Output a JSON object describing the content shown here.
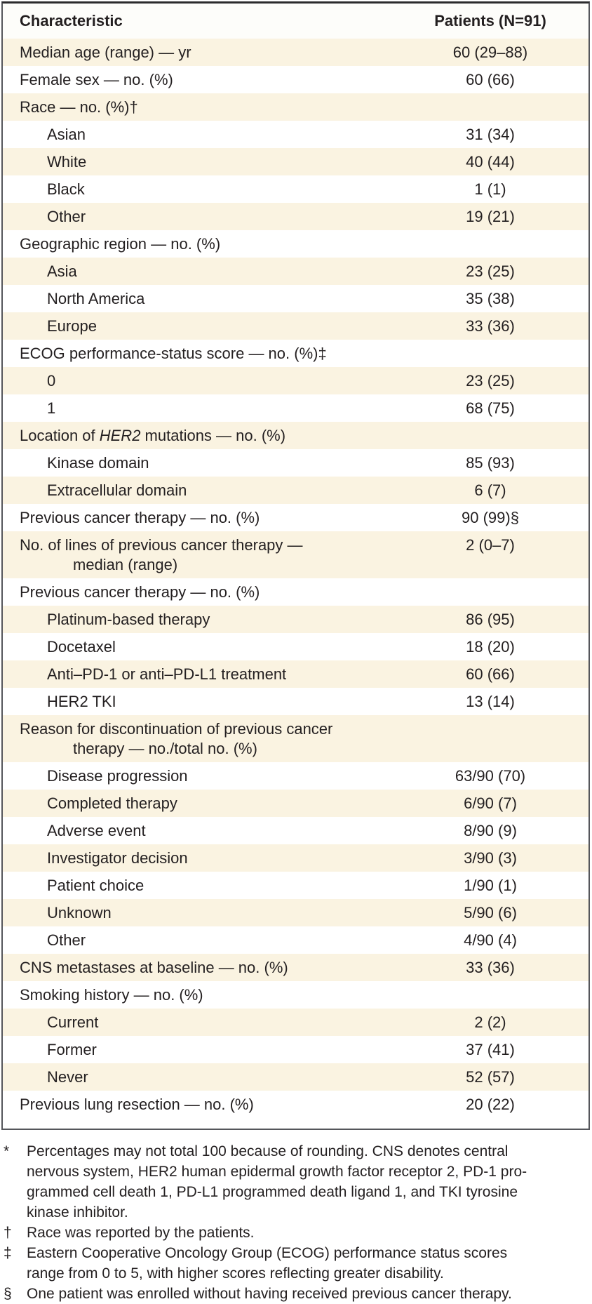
{
  "colors": {
    "row_cream": "#faf3e1",
    "row_white": "#ffffff",
    "border_side": "#55565b",
    "border_top": "#2b2b2d",
    "text": "#231f20"
  },
  "table": {
    "header": {
      "characteristic": "Characteristic",
      "patients": "Patients (N=91)"
    },
    "rows": [
      {
        "label": "Median age (range) — yr",
        "value": "60 (29–88)",
        "indent": 0
      },
      {
        "label": "Female sex — no. (%)",
        "value": "60 (66)",
        "indent": 0
      },
      {
        "label": "Race — no. (%)†",
        "value": "",
        "indent": 0
      },
      {
        "label": "Asian",
        "value": "31 (34)",
        "indent": 1
      },
      {
        "label": "White",
        "value": "40 (44)",
        "indent": 1
      },
      {
        "label": "Black",
        "value": "1 (1)",
        "indent": 1
      },
      {
        "label": "Other",
        "value": "19 (21)",
        "indent": 1
      },
      {
        "label": "Geographic region — no. (%)",
        "value": "",
        "indent": 0
      },
      {
        "label": "Asia",
        "value": "23 (25)",
        "indent": 1
      },
      {
        "label": "North America",
        "value": "35 (38)",
        "indent": 1
      },
      {
        "label": "Europe",
        "value": "33 (36)",
        "indent": 1
      },
      {
        "label": "ECOG performance-status score — no. (%)‡",
        "value": "",
        "indent": 0
      },
      {
        "label": "0",
        "value": "23 (25)",
        "indent": 1
      },
      {
        "label": "1",
        "value": "68 (75)",
        "indent": 1
      },
      {
        "label": "Location of <i>HER2</i> mutations — no. (%)",
        "value": "",
        "indent": 0,
        "html": true
      },
      {
        "label": "Kinase domain",
        "value": "85 (93)",
        "indent": 1
      },
      {
        "label": "Extracellular domain",
        "value": "6 (7)",
        "indent": 1
      },
      {
        "label": "Previous cancer therapy — no. (%)",
        "value": "90 (99)§",
        "indent": 0
      },
      {
        "label": "No. of lines of previous cancer therapy —\nmedian (range)",
        "value": "2 (0–7)",
        "indent": 0
      },
      {
        "label": "Previous cancer therapy — no. (%)",
        "value": "",
        "indent": 0
      },
      {
        "label": "Platinum-based therapy",
        "value": "86 (95)",
        "indent": 1
      },
      {
        "label": "Docetaxel",
        "value": "18 (20)",
        "indent": 1
      },
      {
        "label": "Anti–PD-1 or anti–PD-L1 treatment",
        "value": "60 (66)",
        "indent": 1
      },
      {
        "label": "HER2 TKI",
        "value": "13 (14)",
        "indent": 1
      },
      {
        "label": "Reason for discontinuation of previous cancer\ntherapy — no./total no. (%)",
        "value": "",
        "indent": 0
      },
      {
        "label": "Disease progression",
        "value": "63/90 (70)",
        "indent": 1
      },
      {
        "label": "Completed therapy",
        "value": "6/90 (7)",
        "indent": 1
      },
      {
        "label": "Adverse event",
        "value": "8/90 (9)",
        "indent": 1
      },
      {
        "label": "Investigator decision",
        "value": "3/90 (3)",
        "indent": 1
      },
      {
        "label": "Patient choice",
        "value": "1/90 (1)",
        "indent": 1
      },
      {
        "label": "Unknown",
        "value": "5/90 (6)",
        "indent": 1
      },
      {
        "label": "Other",
        "value": "4/90 (4)",
        "indent": 1
      },
      {
        "label": "CNS metastases at baseline — no. (%)",
        "value": "33 (36)",
        "indent": 0
      },
      {
        "label": "Smoking history — no. (%)",
        "value": "",
        "indent": 0
      },
      {
        "label": "Current",
        "value": "2 (2)",
        "indent": 1
      },
      {
        "label": "Former",
        "value": "37 (41)",
        "indent": 1
      },
      {
        "label": "Never",
        "value": "52 (57)",
        "indent": 1
      },
      {
        "label": "Previous lung resection — no. (%)",
        "value": "20 (22)",
        "indent": 0
      }
    ]
  },
  "footnotes": [
    {
      "symbol": "*",
      "text": "Percentages may not total 100 because of rounding. CNS denotes central\nnervous system, HER2 human epidermal growth factor receptor 2, PD-1 pro-\ngrammed cell death 1, PD-L1 programmed death ligand 1, and TKI tyrosine\nkinase inhibitor."
    },
    {
      "symbol": "†",
      "text": "Race was reported by the patients."
    },
    {
      "symbol": "‡",
      "text": "Eastern Cooperative Oncology Group (ECOG) performance status scores\nrange from 0 to 5, with higher scores reflecting greater disability."
    },
    {
      "symbol": "§",
      "text": "One patient was enrolled without having received previous cancer therapy."
    }
  ]
}
